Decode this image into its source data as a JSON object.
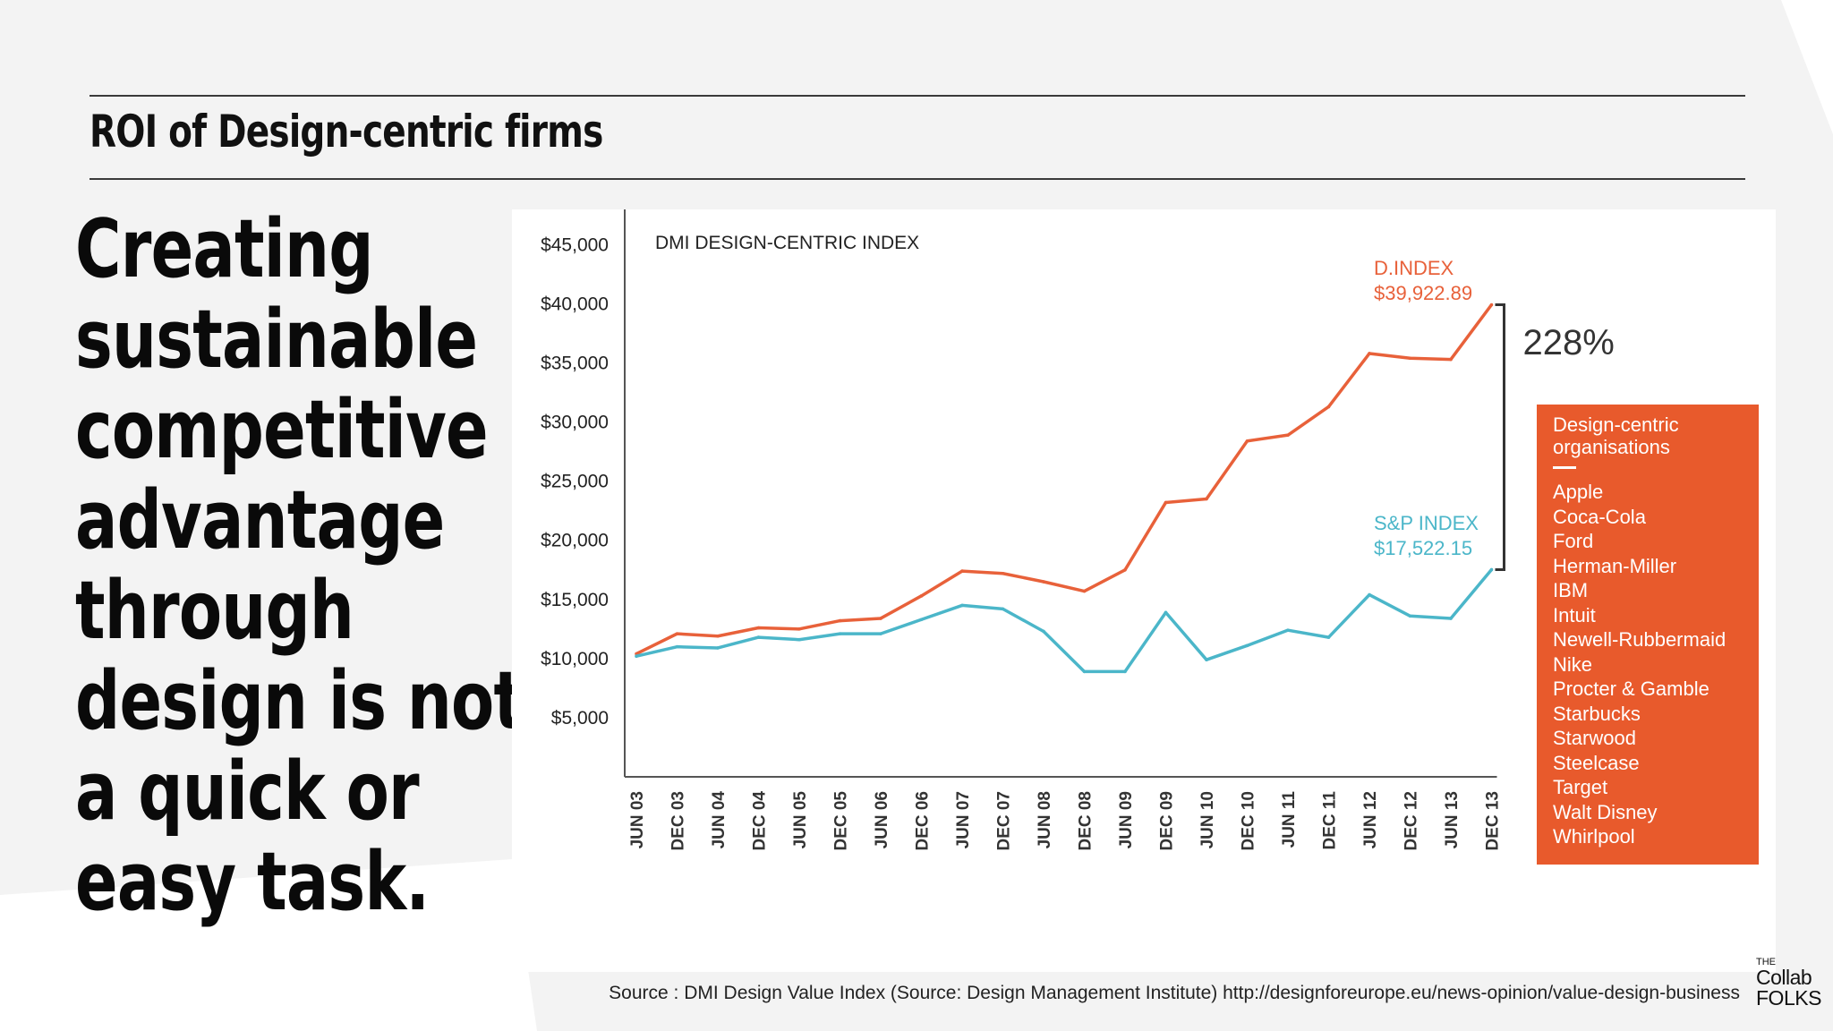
{
  "slide": {
    "title": "ROI of Design-centric firms",
    "headline_lines": [
      "Creating",
      "sustainable",
      "competitive",
      "advantage",
      "through",
      "design is not",
      "a quick or",
      "easy task."
    ],
    "source": "Source : DMI Design Value Index (Source: Design Management Institute)  http://designforeurope.eu/news-opinion/value-design-business",
    "logo": {
      "the": "THE",
      "collab": "Collab",
      "folks": "FOLKS"
    },
    "colors": {
      "background_shape": "#f3f3f3",
      "text": "#0a0a0a",
      "rule": "#3a3a3a"
    }
  },
  "chart_data": {
    "type": "line",
    "title": "DMI DESIGN-CENTRIC INDEX",
    "xlabel": "",
    "ylabel": "",
    "categories": [
      "JUN 03",
      "DEC 03",
      "JUN 04",
      "DEC 04",
      "JUN 05",
      "DEC 05",
      "JUN 06",
      "DEC 06",
      "JUN 07",
      "DEC 07",
      "JUN 08",
      "DEC 08",
      "JUN 09",
      "DEC 09",
      "JUN 10",
      "DEC 10",
      "JUN 11",
      "DEC 11",
      "JUN 12",
      "DEC 12",
      "JUN 13",
      "DEC 13"
    ],
    "y_ticks": [
      5000,
      10000,
      15000,
      20000,
      25000,
      30000,
      35000,
      40000,
      45000
    ],
    "y_tick_labels": [
      "$5,000",
      "$10,000",
      "$15,000",
      "$20,000",
      "$25,000",
      "$30,000",
      "$35,000",
      "$40,000",
      "$45,000"
    ],
    "ylim": [
      0,
      47000
    ],
    "grid": false,
    "series": [
      {
        "name": "D.INDEX",
        "color": "#e8613a",
        "end_label": "D.INDEX",
        "end_value_label": "$39,922.89",
        "values": [
          10400,
          12100,
          11900,
          12600,
          12500,
          13200,
          13400,
          15300,
          17400,
          17200,
          16500,
          15700,
          17500,
          23200,
          23500,
          28400,
          28900,
          31300,
          35800,
          35400,
          35300,
          39922.89
        ]
      },
      {
        "name": "S&P INDEX",
        "color": "#4bb6c9",
        "end_label": "S&P INDEX",
        "end_value_label": "$17,522.15",
        "values": [
          10200,
          11000,
          10900,
          11800,
          11600,
          12100,
          12100,
          13300,
          14500,
          14200,
          12300,
          8900,
          8900,
          13900,
          9900,
          11100,
          12400,
          11800,
          15400,
          13600,
          13400,
          17522.15
        ]
      }
    ],
    "annotation": {
      "text": "228%",
      "bracket_color": "#333333"
    },
    "legend_box": {
      "heading": "Design-centric organisations",
      "color": "#e85a2c",
      "items": [
        "Apple",
        "Coca-Cola",
        "Ford",
        "Herman-Miller",
        "IBM",
        "Intuit",
        "Newell-Rubbermaid",
        "Nike",
        "Procter & Gamble",
        "Starbucks",
        "Starwood",
        "Steelcase",
        "Target",
        "Walt Disney",
        "Whirlpool"
      ]
    }
  }
}
